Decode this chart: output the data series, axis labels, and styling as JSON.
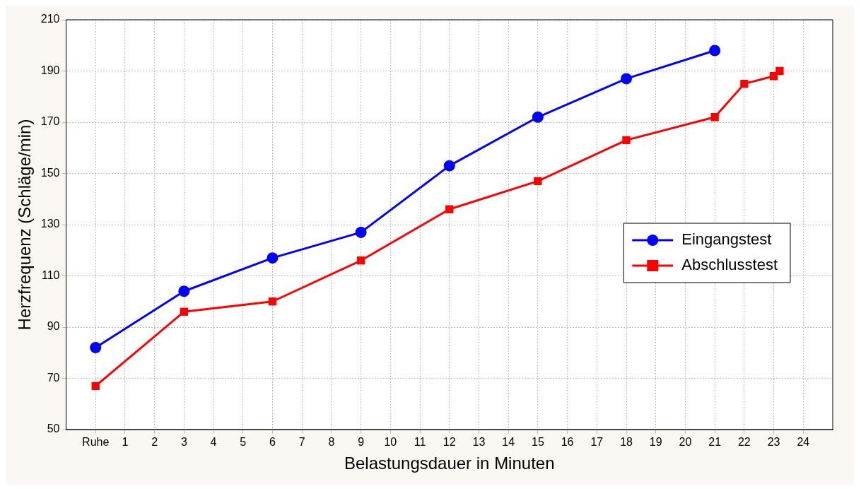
{
  "chart_data": {
    "type": "line",
    "xlabel": "Belastungsdauer in Minuten",
    "ylabel": "Herzfrequenz (Schläge/min)",
    "xlim": [
      -1,
      25
    ],
    "xticks": [
      {
        "value": 0,
        "label": "Ruhe"
      },
      1,
      2,
      3,
      4,
      5,
      6,
      7,
      8,
      9,
      10,
      11,
      12,
      13,
      14,
      15,
      16,
      17,
      18,
      19,
      20,
      21,
      22,
      23,
      24
    ],
    "ylim": [
      50,
      210
    ],
    "yticks": [
      50,
      70,
      90,
      110,
      130,
      150,
      170,
      190,
      210
    ],
    "grid": true,
    "legend": "right",
    "line_style": "solid",
    "series": [
      {
        "name": "Eingangstest",
        "color": "#0000ff",
        "marker": "circle",
        "x": [
          0,
          3,
          6,
          9,
          12,
          15,
          18,
          21
        ],
        "values": [
          82,
          104,
          117,
          127,
          153,
          172,
          187,
          198
        ]
      },
      {
        "name": "Abschlusstest",
        "color": "#ff0000",
        "marker": "square",
        "x": [
          0,
          3,
          6,
          9,
          12,
          15,
          18,
          21,
          22,
          23,
          23.2
        ],
        "values": [
          67,
          96,
          100,
          116,
          136,
          147,
          163,
          172,
          185,
          188,
          190
        ]
      }
    ]
  }
}
